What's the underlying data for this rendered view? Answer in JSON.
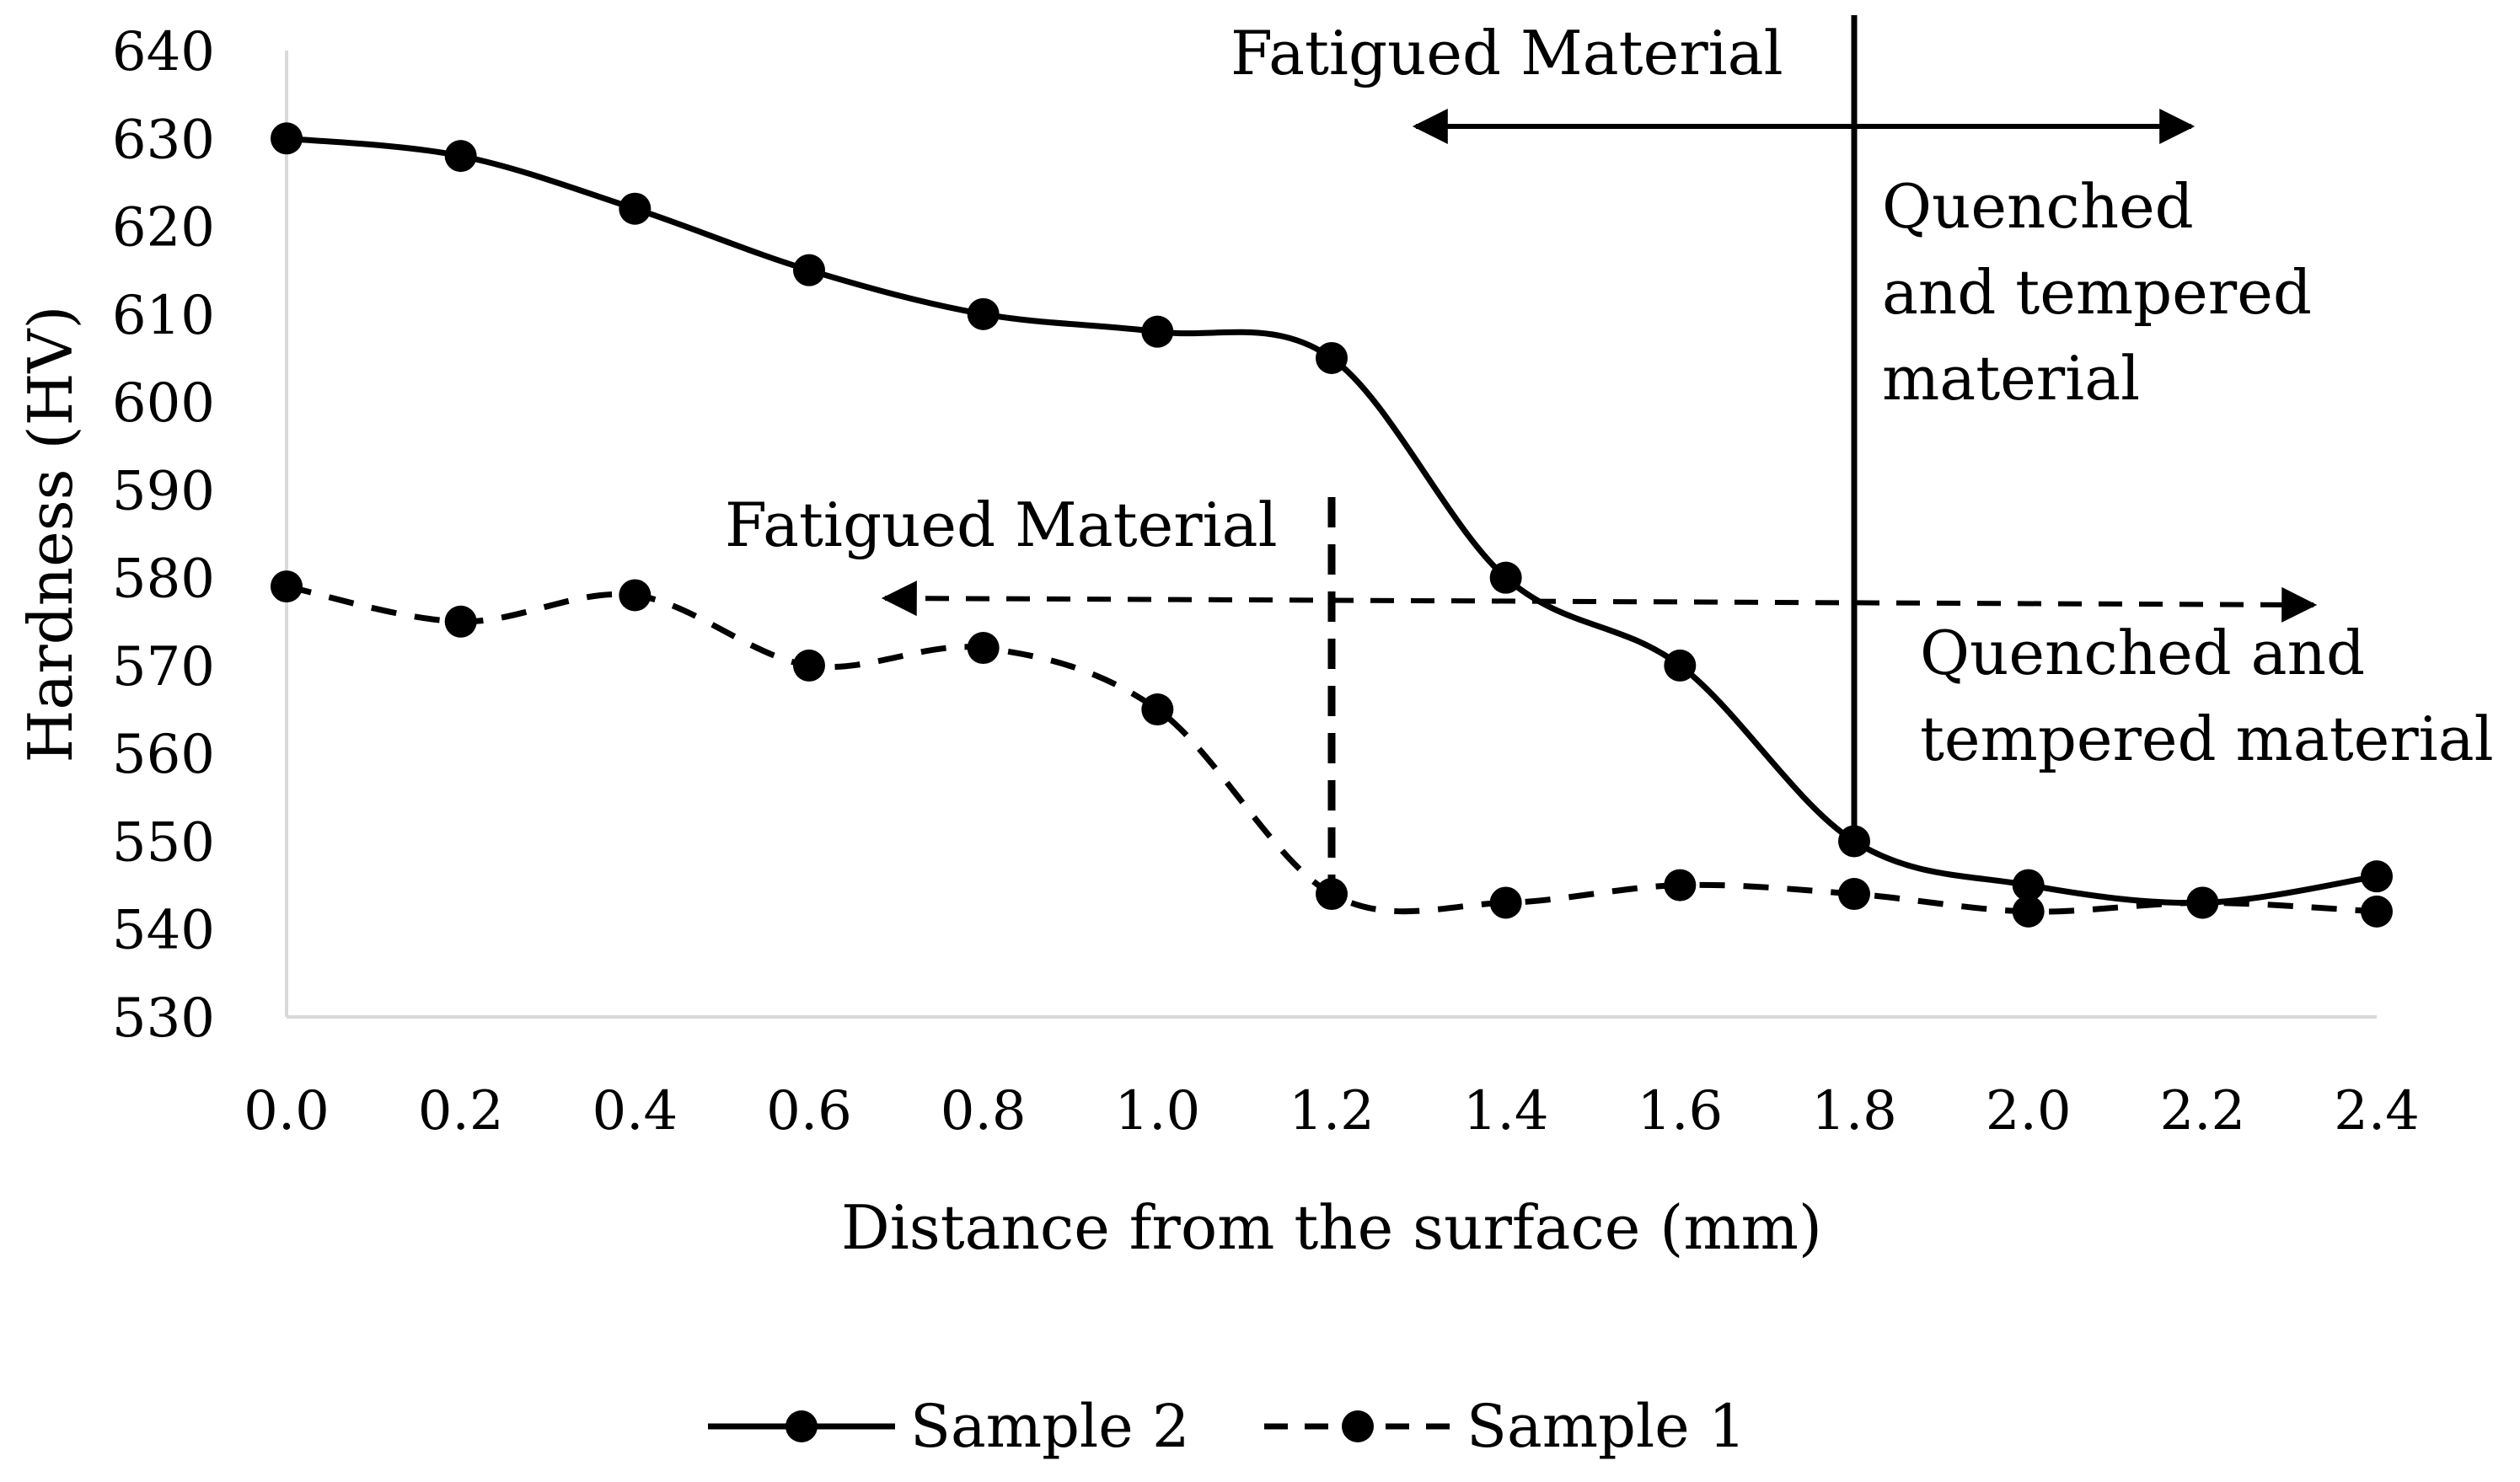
{
  "chart_data": {
    "type": "line",
    "title": "",
    "xlabel": "Distance from the surface (mm)",
    "ylabel": "Hardness (HV)",
    "xlim": [
      0.0,
      2.4
    ],
    "ylim": [
      530,
      640
    ],
    "x_ticks": [
      "0.0",
      "0.2",
      "0.4",
      "0.6",
      "0.8",
      "1.0",
      "1.2",
      "1.4",
      "1.6",
      "1.8",
      "2.0",
      "2.2",
      "2.4"
    ],
    "y_ticks": [
      "530",
      "540",
      "550",
      "560",
      "570",
      "580",
      "590",
      "600",
      "610",
      "620",
      "630",
      "640"
    ],
    "x": [
      0.0,
      0.2,
      0.4,
      0.6,
      0.8,
      1.0,
      1.2,
      1.4,
      1.6,
      1.8,
      2.0,
      2.2,
      2.4
    ],
    "grid": false,
    "series": [
      {
        "name": "Sample 2",
        "line_style": "solid",
        "marker": "circle",
        "values": [
          630,
          628,
          622,
          615,
          610,
          608,
          605,
          580,
          570,
          550,
          545,
          543,
          546
        ]
      },
      {
        "name": "Sample 1",
        "line_style": "dashed",
        "marker": "circle",
        "values": [
          579,
          575,
          578,
          570,
          572,
          565,
          544,
          543,
          545,
          544,
          542,
          543,
          542
        ]
      }
    ],
    "legend": [
      "Sample 2",
      "Sample 1"
    ],
    "legend_position": "bottom-center",
    "annotations": [
      {
        "series": "Sample 2",
        "boundary_x": 1.8,
        "label_left": "Fatigued Material",
        "label_right_lines": [
          "Quenched",
          "and tempered",
          "material"
        ],
        "line_style": "solid"
      },
      {
        "series": "Sample 1",
        "boundary_x": 1.2,
        "label_left": "Fatigued Material",
        "label_right_lines": [
          "Quenched and",
          "tempered material"
        ],
        "line_style": "dashed"
      }
    ]
  },
  "colors": {
    "line": "#000000",
    "axis": "#d9d9d9",
    "background": "#ffffff"
  }
}
